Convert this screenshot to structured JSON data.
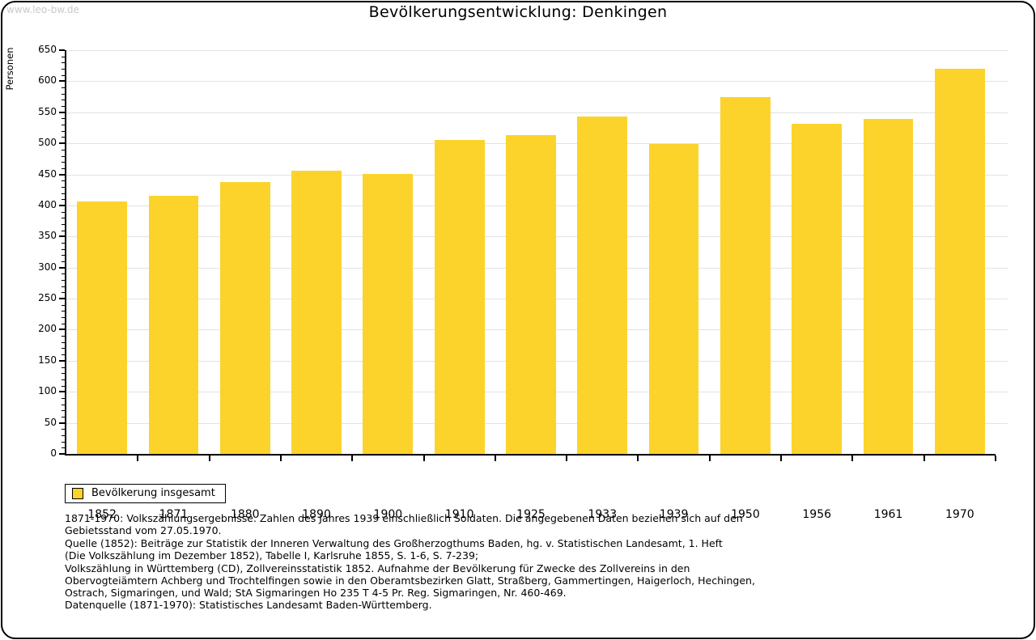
{
  "page": {
    "watermark": "www.leo-bw.de",
    "title": "Bevölkerungsentwicklung: Denkingen"
  },
  "chart_data": {
    "type": "bar",
    "title": "Bevölkerungsentwicklung: Denkingen",
    "xlabel": "",
    "ylabel": "Personen",
    "categories": [
      "1852",
      "1871",
      "1880",
      "1890",
      "1900",
      "1910",
      "1925",
      "1933",
      "1939",
      "1950",
      "1956",
      "1961",
      "1970"
    ],
    "series": [
      {
        "name": "Bevölkerung insgesamt",
        "values": [
          406,
          416,
          438,
          456,
          451,
          505,
          513,
          543,
          499,
          574,
          531,
          539,
          620
        ]
      }
    ],
    "ylim": [
      0,
      650
    ],
    "ytick_step": 50,
    "ytick_labels": [
      "0",
      "50",
      "100",
      "150",
      "200",
      "250",
      "300",
      "350",
      "400",
      "450",
      "500",
      "550",
      "600",
      "650"
    ],
    "yminor_step": 10,
    "grid": true,
    "legend_position": "bottom-left",
    "bar_color": "#fcd32b",
    "gridline_color": "#e2e2e2"
  },
  "legend": {
    "label": "Bevölkerung insgesamt"
  },
  "footnotes": {
    "lines": [
      "1871-1970: Volkszählungsergebnisse. Zahlen des Jahres 1939 einschließlich Soldaten. Die angegebenen Daten beziehen sich auf den",
      "Gebietsstand vom 27.05.1970.",
      "Quelle (1852): Beiträge zur Statistik der Inneren Verwaltung des Großherzogthums Baden, hg. v. Statistischen Landesamt, 1. Heft",
      "(Die Volkszählung im Dezember 1852), Tabelle I, Karlsruhe 1855, S. 1-6, S. 7-239;",
      "Volkszählung in Württemberg (CD), Zollvereinsstatistik 1852. Aufnahme der Bevölkerung für Zwecke des Zollvereins in den",
      "Obervogteiämtern Achberg und Trochtelfingen sowie in den Oberamtsbezirken Glatt, Straßberg, Gammertingen, Haigerloch, Hechingen,",
      "Ostrach, Sigmaringen, und Wald; StA Sigmaringen Ho 235 T 4-5 Pr. Reg. Sigmaringen, Nr. 460-469."
    ],
    "datasource": "Datenquelle (1871-1970): Statistisches Landesamt Baden-Württemberg."
  }
}
